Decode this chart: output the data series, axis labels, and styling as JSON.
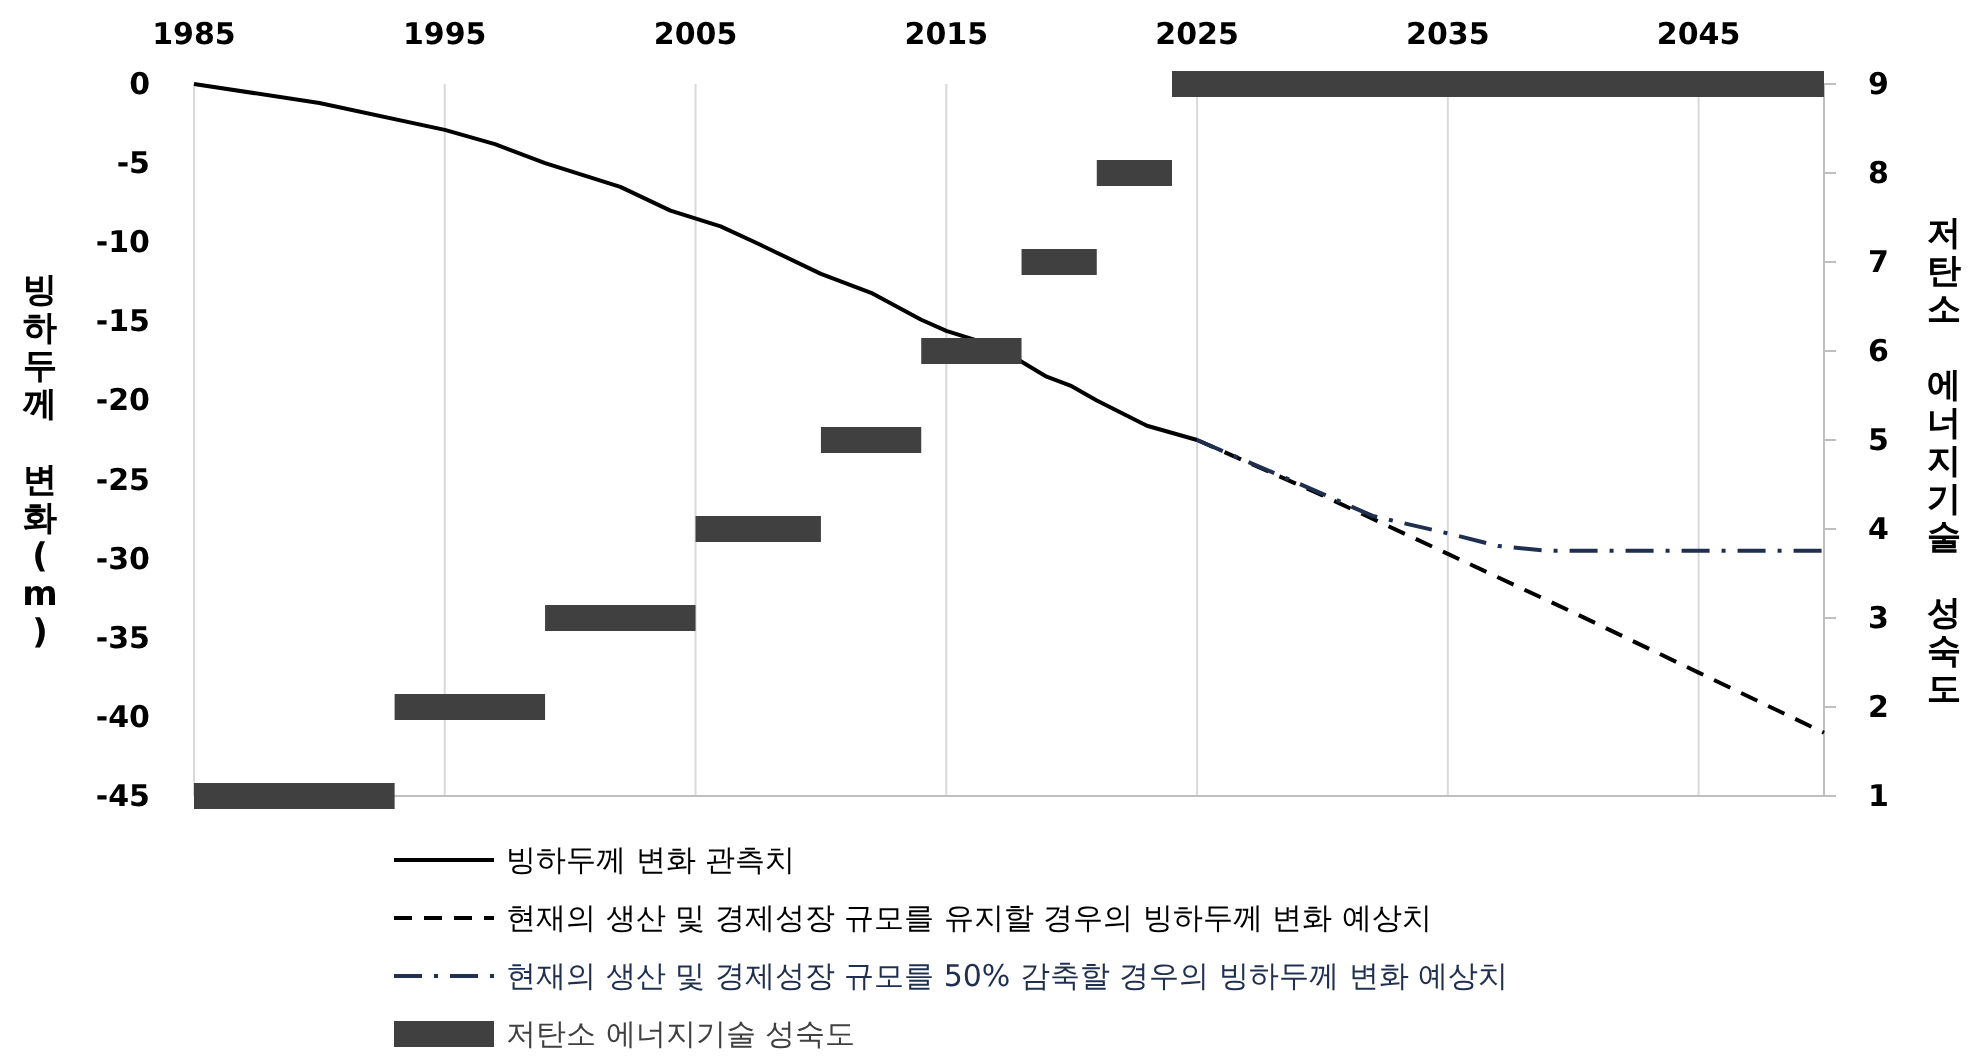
{
  "chart_data": {
    "type": "line",
    "ylabel": "빙하두께 변화(m)",
    "y2label": "저탄소 에너지기술 성숙도",
    "xlim": [
      1985,
      2050
    ],
    "xticks": [
      1985,
      1995,
      2005,
      2015,
      2025,
      2035,
      2045
    ],
    "ylim": [
      -45,
      0
    ],
    "yticks": [
      0,
      -5,
      -10,
      -15,
      -20,
      -25,
      -30,
      -35,
      -40,
      -45
    ],
    "y2lim": [
      1,
      9
    ],
    "y2ticks": [
      1,
      2,
      3,
      4,
      5,
      6,
      7,
      8,
      9
    ],
    "grid": "x",
    "legend": "bottom",
    "series": [
      {
        "name": "빙하두께 변화 관측치",
        "color": "#000000",
        "line_style": "solid",
        "x": [
          1985,
          1990,
          1995,
          1997,
          1999,
          2002,
          2004,
          2006,
          2007.5,
          2010,
          2012,
          2014,
          2015,
          2017,
          2019,
          2020,
          2021,
          2023,
          2025
        ],
        "values": [
          0,
          -1.2,
          -2.9,
          -3.8,
          -5.0,
          -6.5,
          -8.0,
          -9.0,
          -10.1,
          -12.0,
          -13.2,
          -14.9,
          -15.6,
          -16.6,
          -18.5,
          -19.1,
          -20.0,
          -21.6,
          -22.5
        ]
      },
      {
        "name": "현재의 생산 및 경제성장 규모를 유지할 경우의 빙하두께 변화 예상치",
        "color": "#000000",
        "line_style": "dashed",
        "x": [
          2025,
          2030,
          2035,
          2040,
          2045,
          2050
        ],
        "values": [
          -22.5,
          -26.0,
          -29.7,
          -33.4,
          -37.2,
          -41.0
        ]
      },
      {
        "name": "현재의 생산 및 경제성장 규모를 50% 감축할 경우의 빙하두께 변화 예상치",
        "color": "#1f2f4f",
        "line_style": "dashdot",
        "x": [
          2025,
          2030,
          2032,
          2035,
          2037,
          2039,
          2045,
          2050
        ],
        "values": [
          -22.5,
          -25.9,
          -27.3,
          -28.4,
          -29.2,
          -29.5,
          -29.5,
          -29.5
        ]
      },
      {
        "name": "저탄소 에너지기술 성숙도",
        "color": "#404040",
        "axis": "y2",
        "line_style": "solid",
        "x": [
          1985,
          1993,
          null,
          1993,
          1999,
          null,
          1999,
          2005,
          null,
          2005,
          2010,
          null,
          2010,
          2014,
          null,
          2014,
          2018,
          null,
          2018,
          2021,
          null,
          2021,
          2024,
          null,
          2024,
          2050
        ],
        "values": [
          1,
          1,
          null,
          2,
          2,
          null,
          3,
          3,
          null,
          4,
          4,
          null,
          5,
          5,
          null,
          6,
          6,
          null,
          7,
          7,
          null,
          8,
          8,
          null,
          9,
          9
        ]
      }
    ]
  }
}
